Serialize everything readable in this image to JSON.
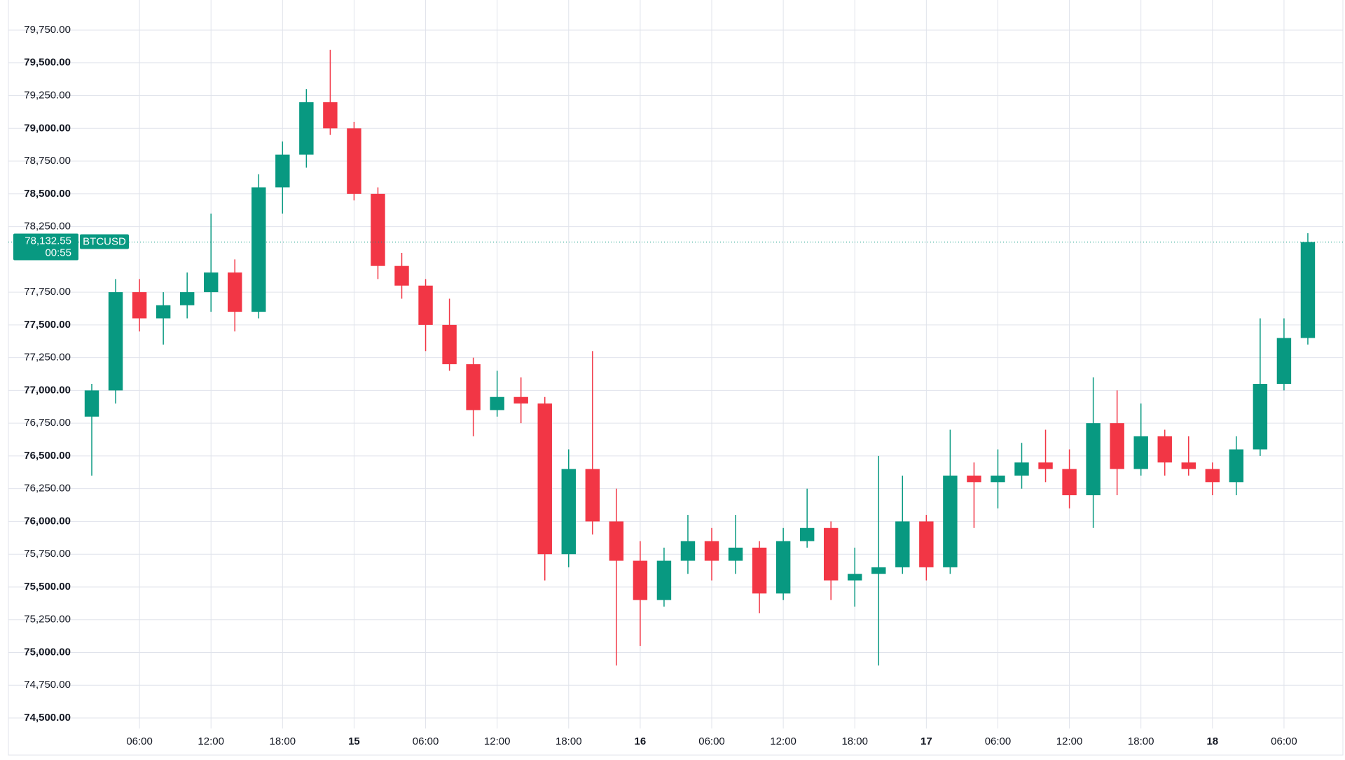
{
  "chart_data": {
    "type": "candlestick",
    "symbol": "BTCUSD",
    "last_price": {
      "value": 78132.55,
      "label": "78,132.55"
    },
    "countdown": "00:55",
    "up_color": "#089981",
    "down_color": "#f23645",
    "grid": true,
    "xlim": [
      1,
      106
    ],
    "ylim": [
      74500,
      79750
    ],
    "xticks": [
      {
        "value": 6,
        "label": "06:00"
      },
      {
        "value": 12,
        "label": "12:00"
      },
      {
        "value": 18,
        "label": "18:00"
      },
      {
        "value": 24,
        "label": "15"
      },
      {
        "value": 30,
        "label": "06:00"
      },
      {
        "value": 36,
        "label": "12:00"
      },
      {
        "value": 42,
        "label": "18:00"
      },
      {
        "value": 48,
        "label": "16"
      },
      {
        "value": 54,
        "label": "06:00"
      },
      {
        "value": 60,
        "label": "12:00"
      },
      {
        "value": 66,
        "label": "18:00"
      },
      {
        "value": 72,
        "label": "17"
      },
      {
        "value": 78,
        "label": "06:00"
      },
      {
        "value": 84,
        "label": "12:00"
      },
      {
        "value": 90,
        "label": "18:00"
      },
      {
        "value": 96,
        "label": "18"
      },
      {
        "value": 102,
        "label": "06:00"
      }
    ],
    "yticks": [
      {
        "value": 74500,
        "label": "74,500.00"
      },
      {
        "value": 74750,
        "label": "74,750.00"
      },
      {
        "value": 75000,
        "label": "75,000.00"
      },
      {
        "value": 75250,
        "label": "75,250.00"
      },
      {
        "value": 75500,
        "label": "75,500.00"
      },
      {
        "value": 75750,
        "label": "75,750.00"
      },
      {
        "value": 76000,
        "label": "76,000.00"
      },
      {
        "value": 76250,
        "label": "76,250.00"
      },
      {
        "value": 76500,
        "label": "76,500.00"
      },
      {
        "value": 76750,
        "label": "76,750.00"
      },
      {
        "value": 77000,
        "label": "77,000.00"
      },
      {
        "value": 77250,
        "label": "77,250.00"
      },
      {
        "value": 77500,
        "label": "77,500.00"
      },
      {
        "value": 77750,
        "label": "77,750.00"
      },
      {
        "value": 78250,
        "label": "78,250.00"
      },
      {
        "value": 78500,
        "label": "78,500.00"
      },
      {
        "value": 78750,
        "label": "78,750.00"
      },
      {
        "value": 79000,
        "label": "79,000.00"
      },
      {
        "value": 79250,
        "label": "79,250.00"
      },
      {
        "value": 79500,
        "label": "79,500.00"
      },
      {
        "value": 79750,
        "label": "79,750.00"
      }
    ],
    "x": [
      2,
      4,
      6,
      8,
      10,
      12,
      14,
      16,
      18,
      20,
      22,
      24,
      26,
      28,
      30,
      32,
      34,
      36,
      38,
      40,
      42,
      44,
      46,
      48,
      50,
      52,
      54,
      56,
      58,
      60,
      62,
      64,
      66,
      68,
      70,
      72,
      74,
      76,
      78,
      80,
      82,
      84,
      86,
      88,
      90,
      92,
      94,
      96,
      98,
      100,
      102,
      104
    ],
    "ohlc": [
      [
        76800,
        77050,
        76350,
        77000
      ],
      [
        77000,
        77850,
        76900,
        77750
      ],
      [
        77750,
        77850,
        77450,
        77550
      ],
      [
        77550,
        77750,
        77350,
        77650
      ],
      [
        77650,
        77900,
        77550,
        77750
      ],
      [
        77750,
        78350,
        77600,
        77900
      ],
      [
        77900,
        78000,
        77450,
        77600
      ],
      [
        77600,
        78650,
        77550,
        78550
      ],
      [
        78550,
        78900,
        78350,
        78800
      ],
      [
        78800,
        79300,
        78700,
        79200
      ],
      [
        79200,
        79600,
        78950,
        79000
      ],
      [
        79000,
        79050,
        78450,
        78500
      ],
      [
        78500,
        78550,
        77850,
        77950
      ],
      [
        77950,
        78050,
        77700,
        77800
      ],
      [
        77800,
        77850,
        77300,
        77500
      ],
      [
        77500,
        77700,
        77150,
        77200
      ],
      [
        77200,
        77250,
        76650,
        76850
      ],
      [
        76850,
        77150,
        76800,
        76950
      ],
      [
        76950,
        77100,
        76750,
        76900
      ],
      [
        76900,
        76950,
        75550,
        75750
      ],
      [
        75750,
        76550,
        75650,
        76400
      ],
      [
        76400,
        77300,
        75900,
        76000
      ],
      [
        76000,
        76250,
        74900,
        75700
      ],
      [
        75700,
        75850,
        75050,
        75400
      ],
      [
        75400,
        75800,
        75350,
        75700
      ],
      [
        75700,
        76050,
        75600,
        75850
      ],
      [
        75850,
        75950,
        75550,
        75700
      ],
      [
        75700,
        76050,
        75600,
        75800
      ],
      [
        75800,
        75850,
        75300,
        75450
      ],
      [
        75450,
        75950,
        75400,
        75850
      ],
      [
        75850,
        76250,
        75800,
        75950
      ],
      [
        75950,
        76000,
        75400,
        75550
      ],
      [
        75550,
        75800,
        75350,
        75600
      ],
      [
        75600,
        76500,
        74900,
        75650
      ],
      [
        75650,
        76350,
        75600,
        76000
      ],
      [
        76000,
        76050,
        75550,
        75650
      ],
      [
        75650,
        76700,
        75600,
        76350
      ],
      [
        76350,
        76450,
        75950,
        76300
      ],
      [
        76300,
        76550,
        76100,
        76350
      ],
      [
        76350,
        76600,
        76250,
        76450
      ],
      [
        76450,
        76700,
        76300,
        76400
      ],
      [
        76400,
        76550,
        76100,
        76200
      ],
      [
        76200,
        77100,
        75950,
        76750
      ],
      [
        76750,
        77000,
        76200,
        76400
      ],
      [
        76400,
        76900,
        76350,
        76650
      ],
      [
        76650,
        76700,
        76350,
        76450
      ],
      [
        76450,
        76650,
        76350,
        76400
      ],
      [
        76400,
        76450,
        76200,
        76300
      ],
      [
        76300,
        76650,
        76200,
        76550
      ],
      [
        76550,
        77550,
        76500,
        77050
      ],
      [
        77050,
        77550,
        77000,
        77400
      ],
      [
        77400,
        78200,
        77350,
        78132.55
      ]
    ]
  }
}
